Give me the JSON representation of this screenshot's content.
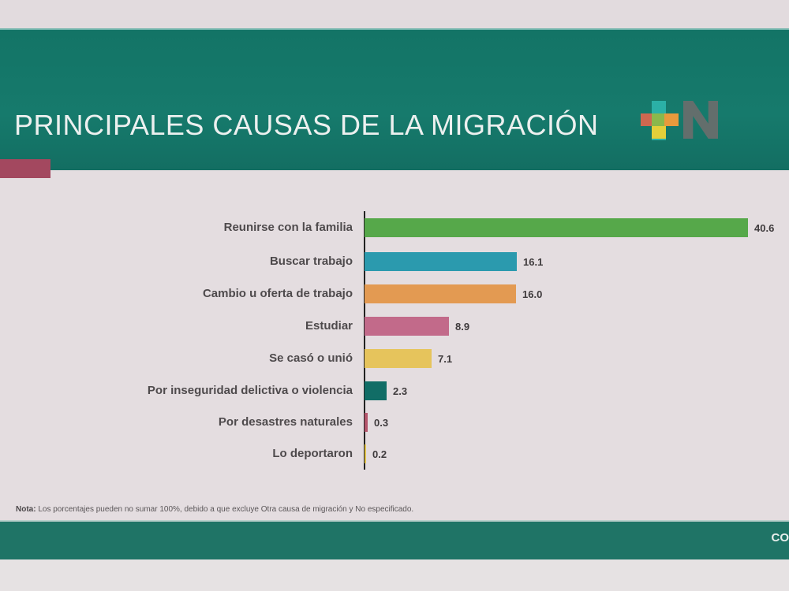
{
  "header": {
    "title": "PRINCIPALES CAUSAS DE LA MIGRACIÓN",
    "logo_icon": "news-logo-plus-n"
  },
  "colors": {
    "header_bg": "#167a6c",
    "accent": "#a3485f",
    "background": "#e4dde0"
  },
  "chart_data": {
    "type": "bar",
    "orientation": "horizontal",
    "title": "PRINCIPALES CAUSAS DE LA MIGRACIÓN",
    "xlabel": "",
    "ylabel": "",
    "unit": "%",
    "grid": false,
    "legend": "none",
    "categories": [
      "Reunirse con la familia",
      "Buscar trabajo",
      "Cambio u oferta de trabajo",
      "Estudiar",
      "Se casó o unió",
      "Por inseguridad delictiva o violencia",
      "Por desastres naturales",
      "Lo deportaron"
    ],
    "values": [
      40.6,
      16.1,
      16.0,
      8.9,
      7.1,
      2.3,
      0.3,
      0.2
    ],
    "value_labels": [
      "40.6",
      "16.1",
      "16.0",
      "8.9",
      "7.1",
      "2.3",
      "0.3",
      "0.2"
    ],
    "bar_colors": [
      "#56a84a",
      "#2b9aae",
      "#e39a52",
      "#c26a8a",
      "#e6c45c",
      "#116d66",
      "#b3546a",
      "#e0c24a"
    ],
    "xlim": [
      0,
      40.6
    ]
  },
  "note": {
    "label": "Nota:",
    "text": " Los porcentajes pueden no sumar 100%, debido a que  excluye Otra causa de migración y No especificado."
  },
  "footer": {
    "text": "CO"
  }
}
